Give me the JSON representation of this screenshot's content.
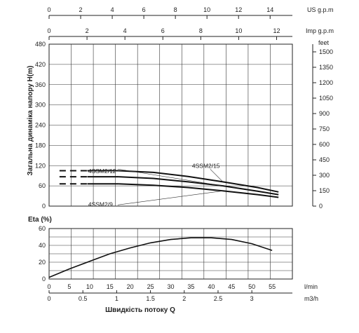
{
  "chart_data": [
    {
      "type": "line",
      "xlabel": "",
      "ylabel": "Загальна динаміка напору H(m)",
      "x_unit": "m3/h",
      "ylim": [
        0,
        480
      ],
      "xlim": [
        0,
        3.5
      ],
      "grid": true,
      "yticks_left": [
        0,
        60,
        120,
        180,
        240,
        300,
        360,
        420,
        480
      ],
      "yticks_right": [
        0,
        150,
        300,
        450,
        600,
        750,
        900,
        1050,
        1200,
        1350,
        1500
      ],
      "y_right_unit": "feet",
      "top_axes": [
        {
          "unit": "US g.p.m",
          "ticks": [
            0,
            2,
            4,
            6,
            8,
            10,
            12,
            14
          ]
        },
        {
          "unit": "Imp g.p.m",
          "ticks": [
            0,
            2,
            4,
            6,
            8,
            10,
            12
          ]
        }
      ],
      "series": [
        {
          "name": "4SSM2/15",
          "x": [
            1,
            1.5,
            2,
            2.5,
            3,
            3.3
          ],
          "y": [
            105,
            100,
            88,
            72,
            55,
            42
          ]
        },
        {
          "name": "4SSM2/12",
          "x": [
            1,
            1.5,
            2,
            2.5,
            3,
            3.3
          ],
          "y": [
            87,
            82,
            72,
            60,
            44,
            34
          ]
        },
        {
          "name": "4SSM2/9",
          "x": [
            1,
            1.5,
            2,
            2.5,
            3,
            3.3
          ],
          "y": [
            66,
            62,
            55,
            45,
            34,
            26
          ]
        }
      ],
      "dashed_segment_x": [
        0.15,
        0.55
      ]
    },
    {
      "type": "line",
      "ylabel": "Eta (%)",
      "xlabel": "Швидкість потоку Q",
      "ylim": [
        0,
        60
      ],
      "yticks": [
        0,
        20,
        40,
        60
      ],
      "grid": true,
      "x_axes": [
        {
          "unit": "l/min",
          "ticks": [
            0,
            5,
            10,
            15,
            20,
            25,
            30,
            35,
            40,
            45,
            50,
            55
          ]
        },
        {
          "unit": "m3/h",
          "ticks": [
            0,
            0.5,
            1,
            1.5,
            2,
            2.5,
            3
          ]
        }
      ],
      "series": [
        {
          "x": [
            0,
            5,
            10,
            15,
            20,
            25,
            30,
            35,
            40,
            45,
            50,
            55
          ],
          "y": [
            2,
            12,
            21,
            30,
            37,
            43,
            47,
            49,
            49,
            47,
            42,
            34
          ]
        }
      ]
    }
  ]
}
